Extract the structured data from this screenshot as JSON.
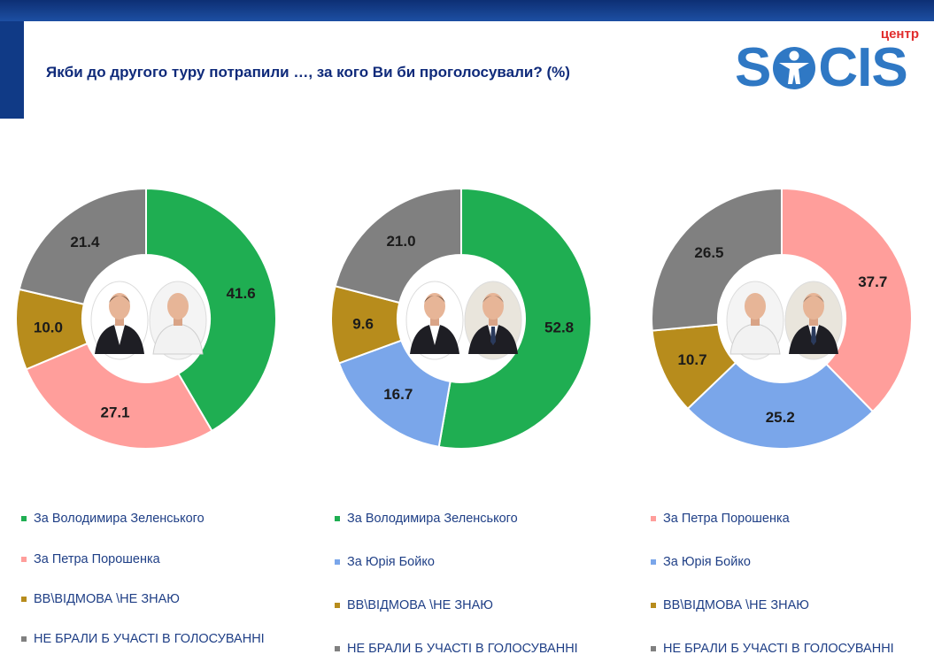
{
  "header": {
    "title": "Якби до другого туру потрапили …, за кого Ви би проголосували? (%)"
  },
  "logo": {
    "small_text": "центр",
    "text_left": "S",
    "text_right": "CIS",
    "color": "#2f78c4",
    "small_color": "#e12d2d"
  },
  "colors": {
    "zelensky": "#1fae52",
    "poroshenko": "#ff9e9b",
    "boyko": "#7aa6ea",
    "dontknow": "#b78c1c",
    "novote": "#808080"
  },
  "chart_data": [
    {
      "type": "pie",
      "style": "donut",
      "categories": [
        "За Володимира Зеленського",
        "За Петра Порошенка",
        "ВВ\\ВІДМОВА \\НЕ ЗНАЮ",
        "НЕ БРАЛИ Б УЧАСТІ В ГОЛОСУВАННІ"
      ],
      "values": [
        41.6,
        27.1,
        10.0,
        21.4
      ],
      "labels": [
        "41.6",
        "27.1",
        "10.0",
        "21.4"
      ],
      "color_keys": [
        "zelensky",
        "poroshenko",
        "dontknow",
        "novote"
      ],
      "portraits": [
        "zelensky",
        "poroshenko"
      ]
    },
    {
      "type": "pie",
      "style": "donut",
      "categories": [
        "За Володимира Зеленського",
        "За Юрія Бойко",
        "ВВ\\ВІДМОВА \\НЕ ЗНАЮ",
        "НЕ БРАЛИ Б УЧАСТІ В ГОЛОСУВАННІ"
      ],
      "values": [
        52.8,
        16.7,
        9.6,
        21.0
      ],
      "labels": [
        "52.8",
        "16.7",
        "9.6",
        "21.0"
      ],
      "color_keys": [
        "zelensky",
        "boyko",
        "dontknow",
        "novote"
      ],
      "portraits": [
        "zelensky",
        "boyko"
      ]
    },
    {
      "type": "pie",
      "style": "donut",
      "categories": [
        "За Петра Порошенка",
        "За Юрія Бойко",
        "ВВ\\ВІДМОВА \\НЕ ЗНАЮ",
        "НЕ БРАЛИ Б УЧАСТІ В ГОЛОСУВАННІ"
      ],
      "values": [
        37.7,
        25.2,
        10.7,
        26.5
      ],
      "labels": [
        "37.7",
        "25.2",
        "10.7",
        "26.5"
      ],
      "color_keys": [
        "poroshenko",
        "boyko",
        "dontknow",
        "novote"
      ],
      "portraits": [
        "poroshenko",
        "boyko"
      ]
    }
  ],
  "legends": [
    [
      "За Володимира Зеленського",
      "За Петра Порошенка",
      "ВВ\\ВІДМОВА \\НЕ ЗНАЮ",
      "НЕ БРАЛИ Б УЧАСТІ В ГОЛОСУВАННІ"
    ],
    [
      "За Володимира Зеленського",
      "За Юрія Бойко",
      "ВВ\\ВІДМОВА \\НЕ ЗНАЮ",
      "НЕ БРАЛИ Б УЧАСТІ В ГОЛОСУВАННІ"
    ],
    [
      "За Петра Порошенка",
      "За Юрія Бойко",
      "ВВ\\ВІДМОВА \\НЕ ЗНАЮ",
      "НЕ БРАЛИ Б УЧАСТІ В ГОЛОСУВАННІ"
    ]
  ]
}
